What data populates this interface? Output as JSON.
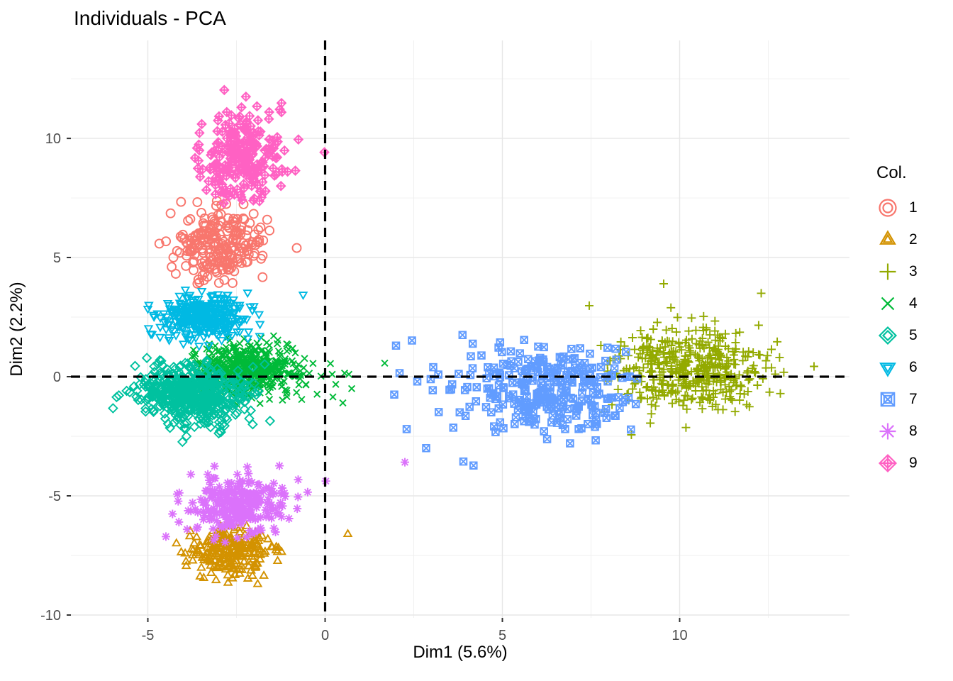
{
  "chart_data": {
    "type": "scatter",
    "title": "Individuals - PCA",
    "xlabel": "Dim1 (5.6%)",
    "ylabel": "Dim2 (2.2%)",
    "xlim": [
      -7.17,
      14.79
    ],
    "ylim": [
      -10.12,
      14.11
    ],
    "x_ticks": [
      -5,
      0,
      5,
      10
    ],
    "y_ticks": [
      -10,
      -5,
      0,
      5,
      10
    ],
    "x_minor_gridlines": [
      -2.5,
      2.5,
      7.5,
      12.5
    ],
    "y_minor_gridlines": [
      -7.5,
      -2.5,
      2.5,
      7.5,
      12.5
    ],
    "grid": true,
    "background": "#FFFFFF",
    "grid_major_color": "#E7E7E7",
    "grid_minor_color": "#EFEFEF",
    "tick_label_color": "#4D4D4D",
    "text_color": "#000000",
    "zero_lines": {
      "x": 0,
      "y": 0,
      "style": "dashed",
      "color": "#000000"
    },
    "legend": {
      "title": "Col.",
      "position": "right"
    },
    "clusters": [
      {
        "label": "1",
        "shape": "circle",
        "color": "#F8766D",
        "n": 235,
        "center": [
          -3.0,
          5.5
        ],
        "sd": [
          0.62,
          0.85
        ],
        "xrange": [
          -4.85,
          -1.2
        ],
        "yrange": [
          3.9,
          7.7
        ],
        "outliers": [
          [
            -0.8,
            5.4
          ]
        ]
      },
      {
        "label": "2",
        "shape": "triangle-up",
        "color": "#D39200",
        "n": 245,
        "center": [
          -2.7,
          -7.35
        ],
        "sd": [
          0.58,
          0.5
        ],
        "xrange": [
          -4.3,
          -0.9
        ],
        "yrange": [
          -8.95,
          -6.1
        ],
        "outliers": [
          [
            0.64,
            -6.61
          ]
        ]
      },
      {
        "label": "3",
        "shape": "plus",
        "color": "#93AA00",
        "n": 460,
        "center": [
          10.3,
          0.35
        ],
        "sd": [
          1.15,
          0.85
        ],
        "xrange": [
          7.2,
          13.8
        ],
        "yrange": [
          -2.65,
          3.95
        ],
        "outliers": [
          [
            9.55,
            3.9
          ],
          [
            12.3,
            3.5
          ],
          [
            7.45,
            2.98
          ]
        ]
      },
      {
        "label": "4",
        "shape": "cross",
        "color": "#00BA38",
        "n": 500,
        "center": [
          -2.25,
          0.3
        ],
        "sd": [
          0.72,
          0.55
        ],
        "xrange": [
          -3.8,
          0.0
        ],
        "yrange": [
          -1.9,
          1.85
        ],
        "outliers": [
          [
            0.2,
            0.1
          ],
          [
            0.55,
            0.15
          ],
          [
            0.67,
            0.1
          ],
          [
            0.3,
            -0.32
          ],
          [
            0.22,
            -0.85
          ],
          [
            0.5,
            -1.1
          ],
          [
            1.68,
            0.57
          ],
          [
            0.15,
            0.55
          ],
          [
            0.75,
            -0.5
          ]
        ]
      },
      {
        "label": "5",
        "shape": "diamond",
        "color": "#00C19F",
        "n": 510,
        "center": [
          -3.75,
          -0.75
        ],
        "sd": [
          0.72,
          0.6
        ],
        "xrange": [
          -6.2,
          -1.5
        ],
        "yrange": [
          -3.0,
          0.8
        ],
        "outliers": []
      },
      {
        "label": "6",
        "shape": "triangle-down",
        "color": "#00B9E3",
        "n": 330,
        "center": [
          -3.4,
          2.5
        ],
        "sd": [
          0.62,
          0.5
        ],
        "xrange": [
          -5.2,
          -1.4
        ],
        "yrange": [
          1.3,
          3.95
        ],
        "outliers": [
          [
            -0.62,
            3.45
          ]
        ]
      },
      {
        "label": "7",
        "shape": "square-cross",
        "color": "#619CFF",
        "n": 295,
        "center": [
          6.3,
          -0.55
        ],
        "sd": [
          1.25,
          0.95
        ],
        "xrange": [
          2.9,
          8.85
        ],
        "yrange": [
          -4.3,
          1.75
        ],
        "outliers": [
          [
            2.0,
            1.3
          ],
          [
            2.45,
            1.52
          ],
          [
            2.1,
            0.15
          ],
          [
            1.95,
            -0.75
          ],
          [
            2.3,
            -2.2
          ],
          [
            2.6,
            -0.2
          ],
          [
            2.85,
            -3.0
          ],
          [
            3.05,
            0.4
          ]
        ]
      },
      {
        "label": "8",
        "shape": "asterisk",
        "color": "#DB72FB",
        "n": 250,
        "center": [
          -2.45,
          -5.4
        ],
        "sd": [
          0.7,
          0.6
        ],
        "xrange": [
          -4.95,
          -0.4
        ],
        "yrange": [
          -7.0,
          -3.2
        ],
        "outliers": [
          [
            0.02,
            -4.38
          ],
          [
            2.25,
            -3.59
          ]
        ]
      },
      {
        "label": "9",
        "shape": "diamond-plus",
        "color": "#FF61C3",
        "n": 240,
        "center": [
          -2.35,
          9.3
        ],
        "sd": [
          0.6,
          1.05
        ],
        "xrange": [
          -3.7,
          -0.75
        ],
        "yrange": [
          7.2,
          12.9
        ],
        "outliers": [
          [
            -0.02,
            9.42
          ]
        ]
      }
    ]
  }
}
